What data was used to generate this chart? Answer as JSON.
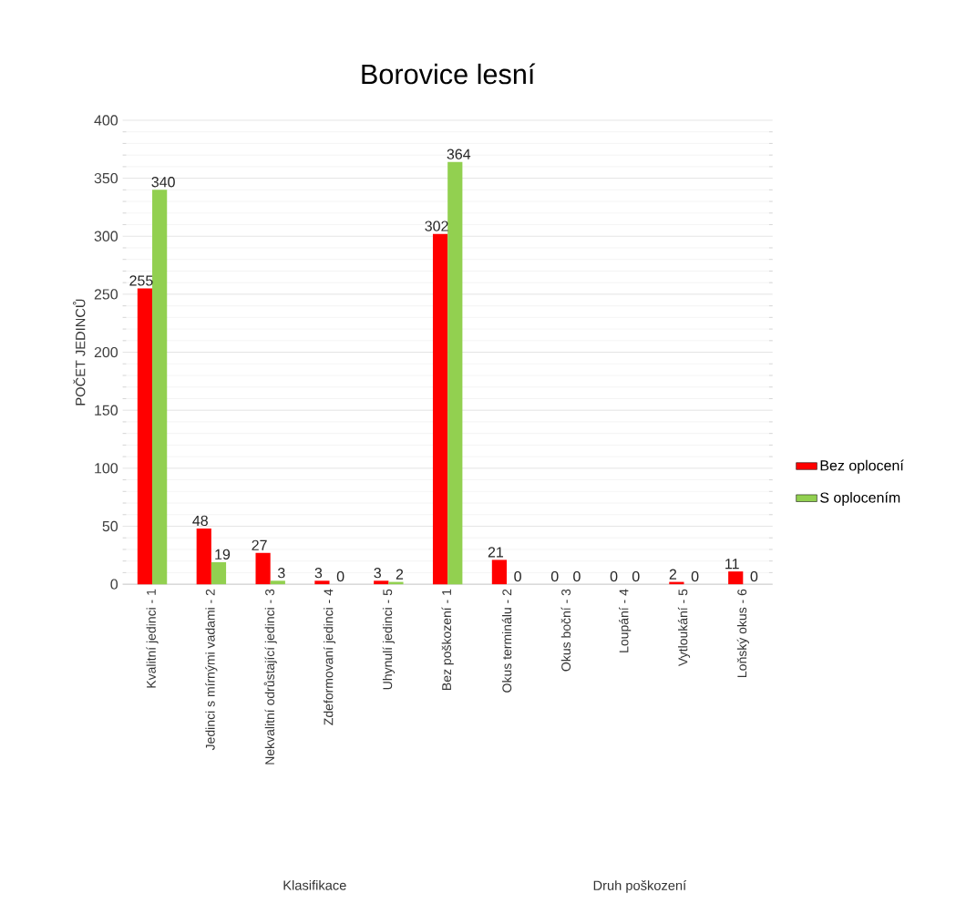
{
  "chart_data": {
    "type": "bar",
    "title": "Borovice lesní",
    "ylabel": "POČET JEDINCŮ",
    "categories": [
      "Kvalitní jedinci - 1",
      "Jedinci s mírnými vadami - 2",
      "Nekvalitní odrůstající jedinci - 3",
      "Zdeformovaní jedinci - 4",
      "Uhynulí jedinci - 5",
      "Bez poškození - 1",
      "Okus terminálu - 2",
      "Okus boční - 3",
      "Loupání - 4",
      "Vytloukání - 5",
      "Loňský okus - 6"
    ],
    "series": [
      {
        "name": "Bez oplocení",
        "color": "#ff0000",
        "values": [
          255,
          48,
          27,
          3,
          3,
          302,
          21,
          0,
          0,
          2,
          11
        ]
      },
      {
        "name": "S oplocením",
        "color": "#92d050",
        "values": [
          340,
          19,
          3,
          0,
          2,
          364,
          0,
          0,
          0,
          0,
          0
        ]
      }
    ],
    "ylim": [
      0,
      400
    ],
    "yticks": [
      0,
      50,
      100,
      150,
      200,
      250,
      300,
      350,
      400
    ],
    "grid": "y",
    "legend": "right",
    "data_labels": true,
    "annotations": [
      "Klasifikace",
      "Druh poškození"
    ]
  }
}
